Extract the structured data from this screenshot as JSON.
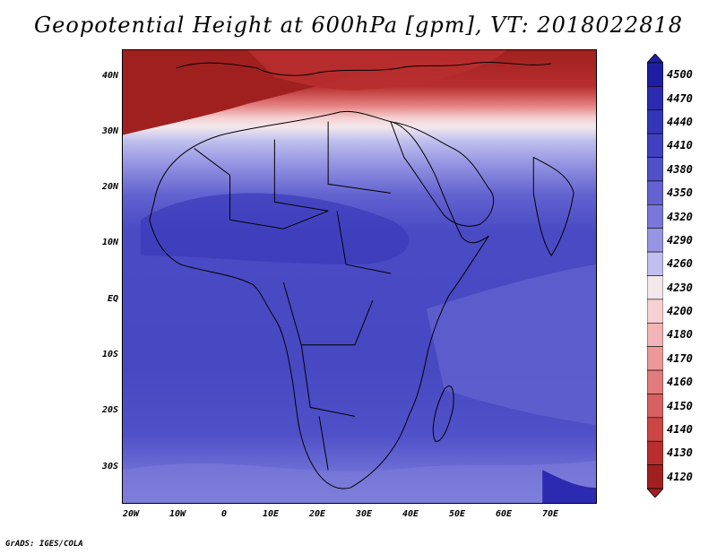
{
  "title": "Geopotential Height at 600hPa [gpm], VT: 2018022818",
  "credit": "GrADS: IGES/COLA",
  "map": {
    "region": "Africa",
    "field": "Geopotential Height at 600hPa",
    "units": "gpm",
    "lat_range": [
      -37,
      45
    ],
    "lon_range": [
      -22,
      80
    ],
    "lat_ticks": [
      "40N",
      "30N",
      "20N",
      "10N",
      "EQ",
      "10S",
      "20S",
      "30S"
    ],
    "lon_ticks": [
      "20W",
      "10W",
      "0",
      "10E",
      "20E",
      "30E",
      "40E",
      "50E",
      "60E",
      "70E"
    ]
  },
  "colorbar": {
    "levels": [
      "4500",
      "4470",
      "4440",
      "4410",
      "4380",
      "4350",
      "4320",
      "4290",
      "4260",
      "4230",
      "4200",
      "4180",
      "4170",
      "4160",
      "4150",
      "4140",
      "4130",
      "4120"
    ],
    "colors": [
      "#1f1ea3",
      "#2b2ab0",
      "#3535b8",
      "#4040c0",
      "#5050c8",
      "#6262d0",
      "#7878d8",
      "#9595e2",
      "#c0c0ee",
      "#f2e8ec",
      "#f6d0d2",
      "#f2b4b6",
      "#ec9898",
      "#e27c7c",
      "#d86060",
      "#cc4646",
      "#b82e2e",
      "#a02020"
    ]
  }
}
